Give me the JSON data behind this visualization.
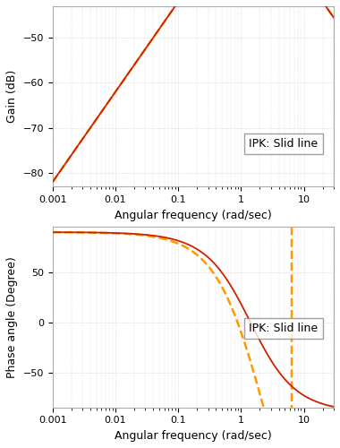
{
  "tau": 0.5,
  "F": 2.0,
  "K": 1.0,
  "omega_min": 0.001,
  "omega_max": 30,
  "gain_ylim": [
    -83,
    -43
  ],
  "gain_yticks": [
    -80,
    -70,
    -60,
    -50
  ],
  "phase_ylim": [
    -85,
    95
  ],
  "phase_yticks": [
    -50,
    0,
    50
  ],
  "gain_ylabel": "Gain (dB)",
  "phase_ylabel": "Phase angle (Degree)",
  "xlabel": "Angular frequency (rad/sec)",
  "legend_text": "IPK: Slid line",
  "solid_color": "#cc2200",
  "dashed_color": "#ff9900",
  "background_color": "#ffffff",
  "grid_color": "#bbbbbb",
  "linewidth_solid": 1.3,
  "linewidth_dashed": 1.8,
  "fontsize_label": 9,
  "fontsize_tick": 8,
  "fontsize_legend": 9,
  "xticks": [
    0.001,
    0.01,
    0.1,
    1,
    10
  ],
  "xtick_labels": [
    "0.001",
    "0.01",
    "0.1",
    "1",
    "10"
  ]
}
